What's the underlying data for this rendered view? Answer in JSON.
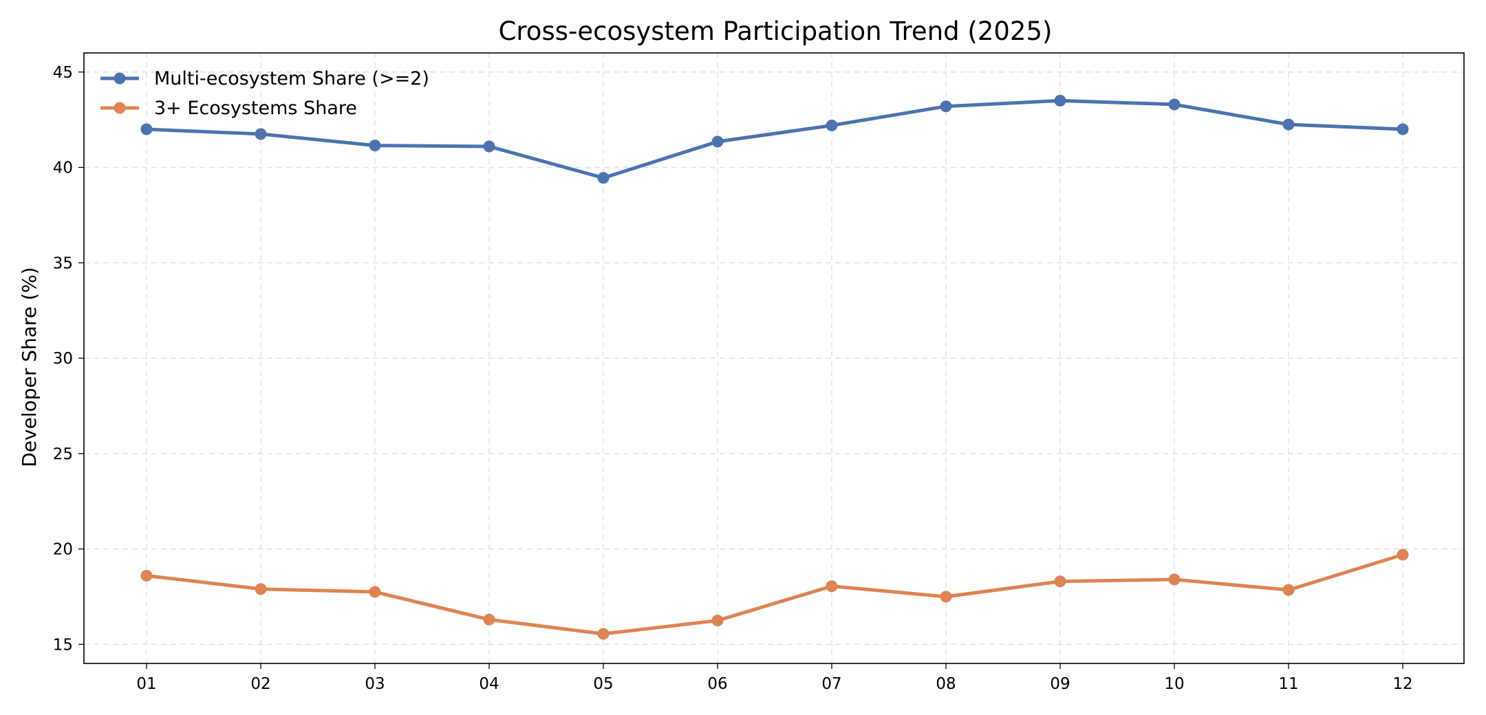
{
  "chart_data": {
    "type": "line",
    "title": "Cross-ecosystem Participation Trend (2025)",
    "xlabel": "",
    "ylabel": "Developer Share (%)",
    "categories": [
      "01",
      "02",
      "03",
      "04",
      "05",
      "06",
      "07",
      "08",
      "09",
      "10",
      "11",
      "12"
    ],
    "ylim": [
      14,
      46
    ],
    "yticks": [
      15,
      20,
      25,
      30,
      35,
      40,
      45
    ],
    "grid": true,
    "legend_position": "top-left",
    "series": [
      {
        "name": "Multi-ecosystem Share (>=2)",
        "color": "#4c72b0",
        "values": [
          42.0,
          41.75,
          41.15,
          41.1,
          39.45,
          41.35,
          42.2,
          43.2,
          43.5,
          43.3,
          42.25,
          42.0
        ]
      },
      {
        "name": "3+ Ecosystems Share",
        "color": "#dd8452",
        "values": [
          18.6,
          17.9,
          17.75,
          16.3,
          15.55,
          16.25,
          18.05,
          17.5,
          18.3,
          18.4,
          17.85,
          19.7
        ]
      }
    ]
  }
}
